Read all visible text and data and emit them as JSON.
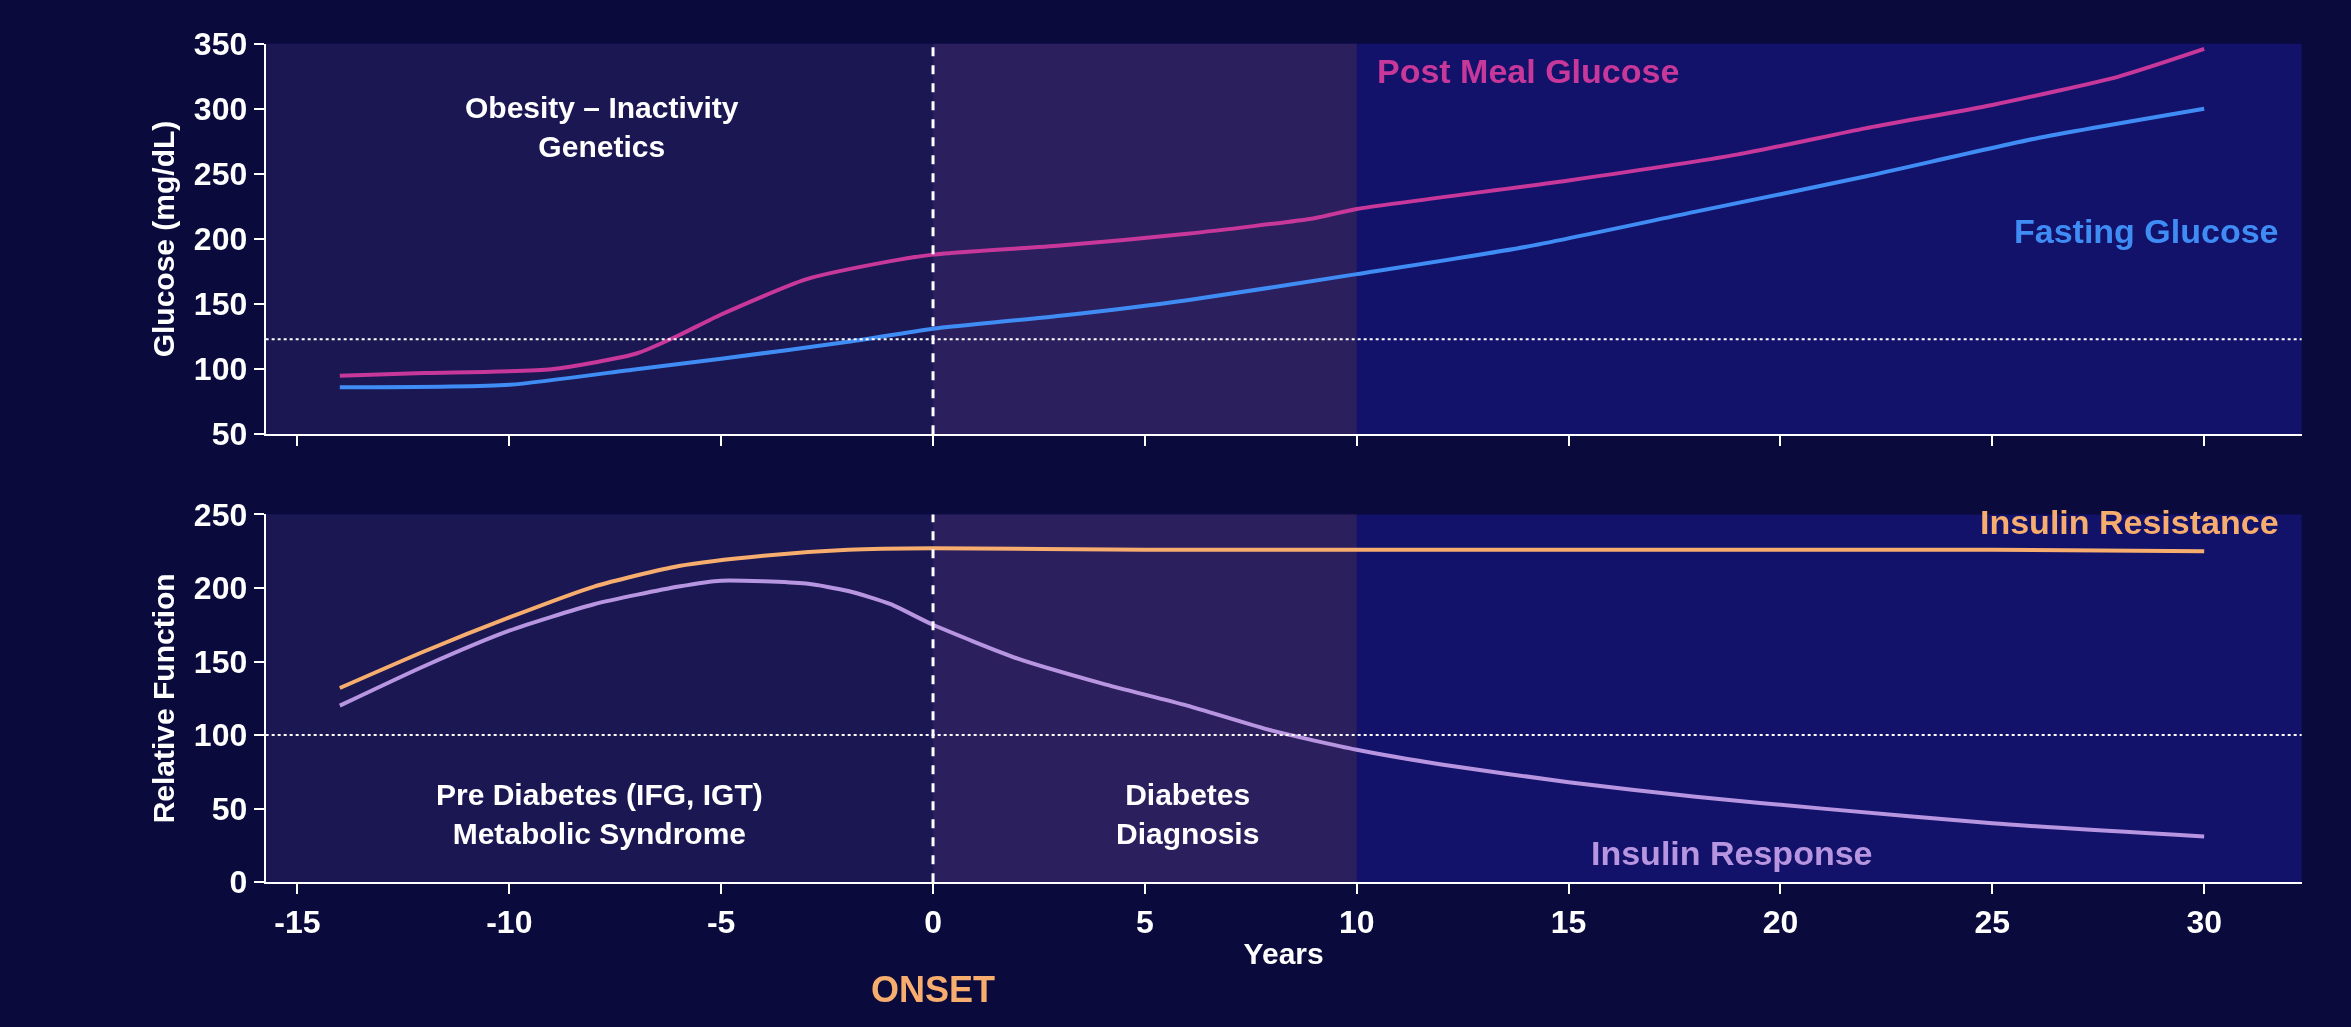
{
  "chart_data": [
    {
      "type": "line",
      "ylabel": "Glucose (mg/dL)",
      "x": [
        -14,
        -12,
        -9,
        -7,
        -6,
        -5,
        -3,
        -1,
        0,
        3,
        6,
        9,
        10,
        15,
        19,
        22,
        25,
        28,
        30
      ],
      "series": [
        {
          "name": "Post Meal Glucose",
          "color": "#c8379a",
          "values": [
            95,
            97,
            100,
            112,
            126,
            142,
            169,
            183,
            188,
            195,
            204,
            216,
            223,
            245,
            265,
            285,
            303,
            325,
            346
          ]
        },
        {
          "name": "Fasting Glucose",
          "color": "#3f8cf5",
          "x": [
            -14,
            -10,
            -7,
            -5,
            -2,
            0,
            3,
            6,
            10,
            14,
            18,
            22,
            26,
            30
          ],
          "values": [
            86,
            88,
            100,
            108,
            121,
            131,
            141,
            153,
            173,
            194,
            221,
            248,
            277,
            300
          ]
        }
      ],
      "xlim": [
        -15.75,
        32.3
      ],
      "xticks": [
        -15,
        -10,
        -5,
        0,
        5,
        10,
        15,
        20,
        25,
        30
      ],
      "ylim": [
        50,
        350
      ],
      "yticks": [
        50,
        100,
        150,
        200,
        250,
        300,
        350
      ],
      "tick_labels": "y",
      "ref_lines": [
        {
          "axis": "x",
          "value": 0,
          "color": "#ffffff",
          "line_style": "dashed"
        },
        {
          "axis": "y",
          "value": 123,
          "color": "#ffffff",
          "line_style": "dotted"
        }
      ],
      "bands": [
        {
          "axis": "x",
          "from": -15.75,
          "to": 0,
          "color": "#1a1752"
        },
        {
          "axis": "x",
          "from": 0,
          "to": 10,
          "color": "#2c1f5e"
        }
      ],
      "annotations": [
        "Obesity – Inactivity\nGenetics"
      ]
    },
    {
      "type": "line",
      "ylabel": "Relative Function",
      "xlabel": "Years",
      "x": [
        -14,
        -12,
        -10,
        -8,
        -6,
        -4,
        -2,
        0,
        5,
        10,
        15,
        20,
        25,
        30
      ],
      "series": [
        {
          "name": "Insulin Resistance",
          "color": "#f6ad6e",
          "values": [
            132,
            157,
            180,
            201,
            215,
            222,
            226,
            227,
            226,
            226,
            226,
            226,
            226,
            225
          ]
        },
        {
          "name": "Insulin Response",
          "color": "#b795e0",
          "x": [
            -14,
            -12,
            -10,
            -8,
            -6,
            -5,
            -3,
            -2,
            -1,
            0,
            2,
            4,
            6,
            8,
            10,
            12,
            15,
            18,
            21,
            25,
            30
          ],
          "values": [
            120,
            147,
            171,
            189,
            201,
            205,
            203,
            198,
            189,
            175,
            152,
            135,
            120,
            103,
            90,
            80,
            68,
            58,
            50,
            40,
            31
          ]
        }
      ],
      "xlim": [
        -15.75,
        32.3
      ],
      "xticks": [
        -15,
        -10,
        -5,
        0,
        5,
        10,
        15,
        20,
        25,
        30
      ],
      "ylim": [
        0,
        250
      ],
      "yticks": [
        0,
        50,
        100,
        150,
        200,
        250
      ],
      "ref_lines": [
        {
          "axis": "x",
          "value": 0,
          "color": "#ffffff",
          "line_style": "dashed"
        },
        {
          "axis": "y",
          "value": 100,
          "color": "#ffffff",
          "line_style": "dotted"
        }
      ],
      "bands": [
        {
          "axis": "x",
          "from": -15.75,
          "to": 0,
          "color": "#1a1752"
        },
        {
          "axis": "x",
          "from": 0,
          "to": 10,
          "color": "#2c1f5e"
        }
      ],
      "annotations": [
        "Pre Diabetes (IFG, IGT)\nMetabolic Syndrome",
        "Diabetes\nDiagnosis",
        "ONSET"
      ]
    }
  ]
}
